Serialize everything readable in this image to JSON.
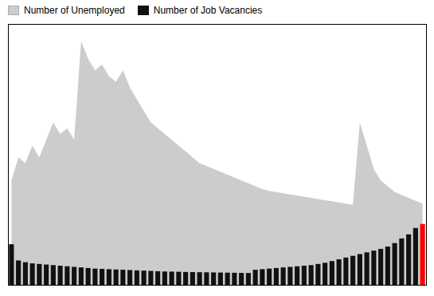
{
  "chart_data": {
    "type": "bar",
    "categories": [
      null,
      null,
      null,
      null,
      null,
      null,
      null,
      null,
      null,
      null,
      null,
      null,
      null,
      null,
      null,
      null,
      null,
      null,
      null,
      null,
      null,
      null,
      null,
      null,
      null,
      null,
      null,
      null,
      null,
      null,
      null,
      null,
      null,
      null,
      null,
      null,
      null,
      null,
      null,
      null,
      null,
      null,
      null,
      null,
      null,
      null,
      null,
      null,
      null,
      null,
      null,
      null,
      null,
      null,
      null,
      null,
      null,
      null,
      null,
      null
    ],
    "series": [
      {
        "name": "Number of Unemployed",
        "type": "area",
        "color": "#cccccc",
        "values": [
          1800,
          2200,
          2100,
          2400,
          2200,
          2500,
          2800,
          2600,
          2700,
          2500,
          4200,
          3900,
          3700,
          3800,
          3600,
          3500,
          3700,
          3400,
          3200,
          3000,
          2800,
          2700,
          2600,
          2500,
          2400,
          2300,
          2200,
          2100,
          2050,
          2000,
          1950,
          1900,
          1850,
          1800,
          1750,
          1700,
          1650,
          1620,
          1600,
          1580,
          1560,
          1540,
          1520,
          1500,
          1480,
          1460,
          1440,
          1420,
          1400,
          1380,
          2800,
          2400,
          2000,
          1800,
          1700,
          1600,
          1550,
          1500,
          1450,
          1400
        ]
      },
      {
        "name": "Number of Job Vacancies",
        "type": "bar",
        "color": "#111111",
        "colors": [
          "#111111",
          "#111111",
          "#111111",
          "#111111",
          "#111111",
          "#111111",
          "#111111",
          "#111111",
          "#111111",
          "#111111",
          "#111111",
          "#111111",
          "#111111",
          "#111111",
          "#111111",
          "#111111",
          "#111111",
          "#111111",
          "#111111",
          "#111111",
          "#111111",
          "#111111",
          "#111111",
          "#111111",
          "#111111",
          "#111111",
          "#111111",
          "#111111",
          "#111111",
          "#111111",
          "#111111",
          "#111111",
          "#111111",
          "#111111",
          "#111111",
          "#111111",
          "#111111",
          "#111111",
          "#111111",
          "#111111",
          "#111111",
          "#111111",
          "#111111",
          "#111111",
          "#111111",
          "#111111",
          "#111111",
          "#111111",
          "#111111",
          "#111111",
          "#111111",
          "#111111",
          "#111111",
          "#111111",
          "#111111",
          "#111111",
          "#111111",
          "#111111",
          "#111111",
          "#ff0000"
        ],
        "values": [
          700,
          420,
          390,
          370,
          360,
          350,
          340,
          330,
          320,
          310,
          300,
          290,
          280,
          275,
          270,
          265,
          260,
          255,
          250,
          245,
          240,
          235,
          230,
          228,
          225,
          222,
          220,
          218,
          216,
          214,
          212,
          210,
          208,
          206,
          204,
          260,
          270,
          280,
          290,
          300,
          310,
          320,
          330,
          340,
          360,
          380,
          410,
          440,
          470,
          500,
          530,
          560,
          590,
          620,
          660,
          720,
          800,
          870,
          980,
          1050
        ]
      }
    ],
    "ylim": [
      0,
      4500
    ],
    "tick_labels": false,
    "legend": "upper left"
  }
}
